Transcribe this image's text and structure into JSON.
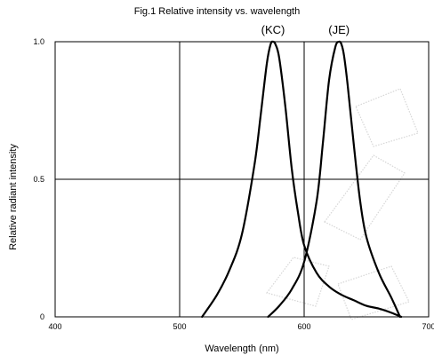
{
  "chart_data": {
    "type": "line",
    "title": "Fig.1 Relative intensity vs. wavelength",
    "xlabel": "Wavelength (nm)",
    "ylabel": "Relative radiant intensity",
    "xlim": [
      400,
      700
    ],
    "ylim": [
      0,
      1.0
    ],
    "x_ticks": [
      "400",
      "500",
      "600",
      "700"
    ],
    "y_ticks": [
      "0",
      "0.5",
      "1.0"
    ],
    "grid": true,
    "legend": "none",
    "series": [
      {
        "name": "(KC)",
        "color": "#000000",
        "x": [
          518,
          530,
          540,
          550,
          560,
          565,
          570,
          573,
          575,
          577,
          580,
          585,
          590,
          595,
          600,
          610,
          620,
          630,
          640,
          650,
          660,
          670,
          678
        ],
        "y": [
          0.0,
          0.08,
          0.17,
          0.3,
          0.55,
          0.73,
          0.92,
          0.99,
          1.0,
          0.99,
          0.94,
          0.76,
          0.54,
          0.38,
          0.26,
          0.16,
          0.11,
          0.08,
          0.06,
          0.04,
          0.03,
          0.015,
          0.0
        ]
      },
      {
        "name": "(JE)",
        "color": "#000000",
        "x": [
          571,
          580,
          590,
          600,
          610,
          615,
          620,
          625,
          628,
          630,
          632,
          635,
          640,
          645,
          650,
          660,
          670,
          677
        ],
        "y": [
          0.0,
          0.04,
          0.1,
          0.2,
          0.42,
          0.63,
          0.86,
          0.98,
          1.0,
          0.99,
          0.95,
          0.84,
          0.62,
          0.42,
          0.29,
          0.16,
          0.07,
          0.0
        ]
      }
    ]
  }
}
